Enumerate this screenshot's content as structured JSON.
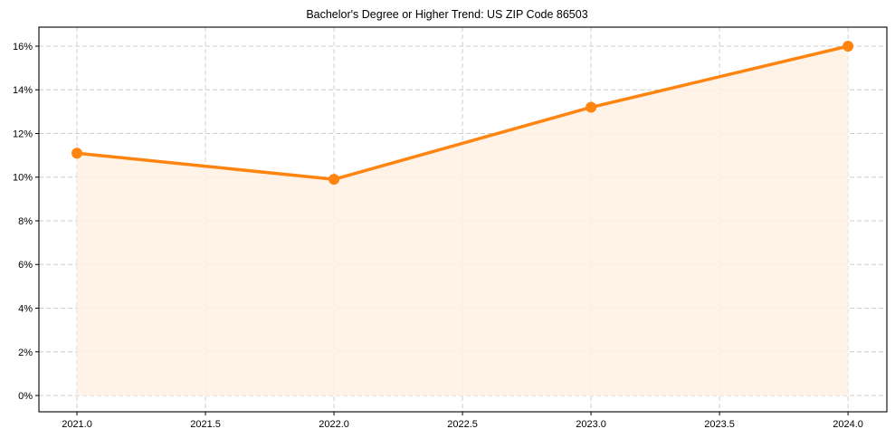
{
  "chart_data": {
    "type": "line",
    "title": "Bachelor's Degree or Higher Trend: US ZIP Code 86503",
    "xlabel": "",
    "ylabel": "",
    "x": [
      2021,
      2022,
      2023,
      2024
    ],
    "series": [
      {
        "name": "Bachelor's Degree or Higher",
        "values": [
          11.1,
          9.9,
          13.2,
          16.0
        ],
        "color": "#ff8510",
        "fill_color": "#fff0e3",
        "marker": "circle"
      }
    ],
    "xlim": [
      2020.852,
      2024.151
    ],
    "ylim": [
      -0.746,
      16.87
    ],
    "x_ticks": [
      2021.0,
      2021.5,
      2022.0,
      2022.5,
      2023.0,
      2023.5,
      2024.0
    ],
    "x_tick_labels": [
      "2021.0",
      "2021.5",
      "2022.0",
      "2022.5",
      "2023.0",
      "2023.5",
      "2024.0"
    ],
    "y_ticks": [
      0,
      2,
      4,
      6,
      8,
      10,
      12,
      14,
      16
    ],
    "y_tick_labels": [
      "0%",
      "2%",
      "4%",
      "6%",
      "8%",
      "10%",
      "12%",
      "14%",
      "16%"
    ],
    "grid": true,
    "grid_style": "dashed",
    "legend": null
  }
}
